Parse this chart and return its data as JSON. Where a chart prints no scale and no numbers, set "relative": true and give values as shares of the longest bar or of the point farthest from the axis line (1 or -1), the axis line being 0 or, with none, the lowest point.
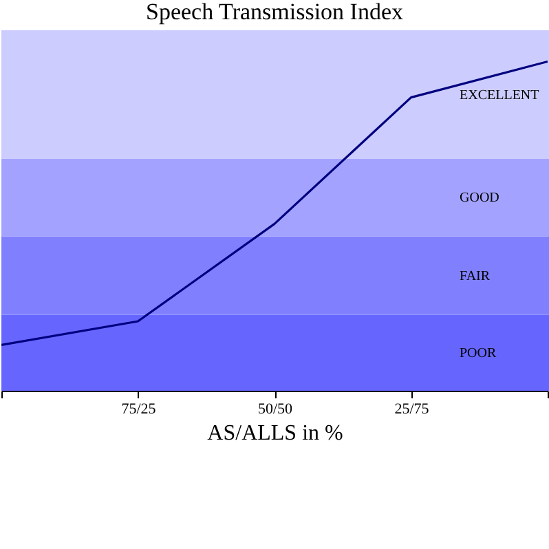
{
  "chart_data": {
    "type": "line",
    "title": "Speech Transmission Index",
    "xlabel": "AS/ALLS in %",
    "relative": true,
    "categories": [
      null,
      "75/25",
      "50/50",
      "25/75",
      null
    ],
    "series": [
      {
        "color": "#000080",
        "values": [
          0.139,
          0.211,
          0.507,
          0.891,
          1.0
        ]
      }
    ],
    "bands": [
      {
        "axis": "y",
        "from": 0,
        "to": 0.231,
        "label": "POOR",
        "color": "#6666ff"
      },
      {
        "axis": "y",
        "from": 0.231,
        "to": 0.469,
        "label": "FAIR",
        "color": "#8080ff"
      },
      {
        "axis": "y",
        "from": 0.469,
        "to": 0.704,
        "label": "GOOD",
        "color": "#a3a3ff"
      },
      {
        "axis": "y",
        "from": 0.704,
        "to": 1.095,
        "label": "EXCELLENT",
        "color": "#ccccff"
      }
    ],
    "line_style": "solid",
    "marker": "none",
    "grid": false
  }
}
